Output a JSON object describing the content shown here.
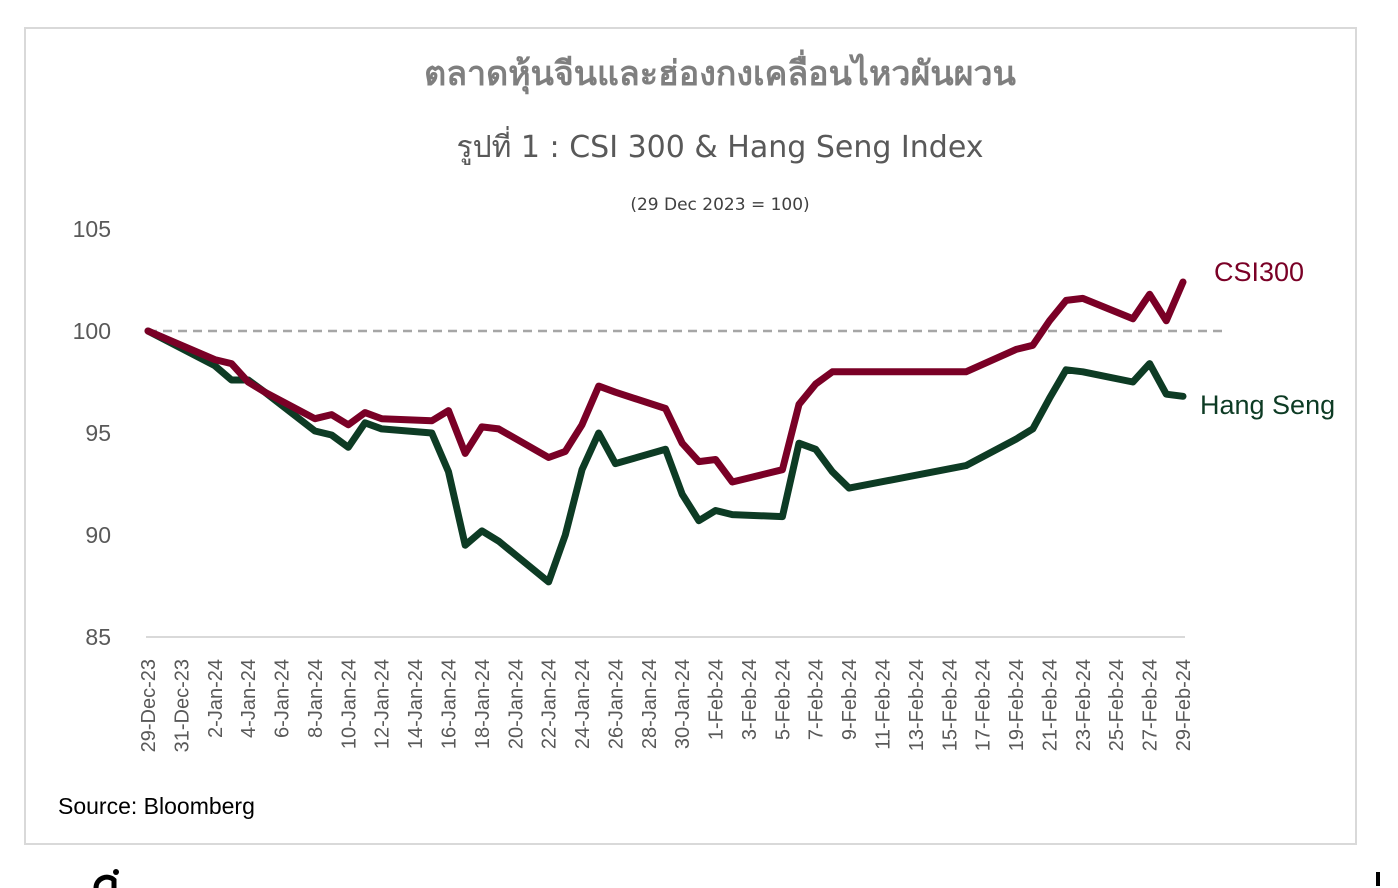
{
  "chart_data": {
    "type": "line",
    "title": "ตลาดหุ้นจีนและฮ่องกงเคลื่อนไหวผันผวน",
    "subtitle": "รูปที่ 1 : CSI 300 & Hang Seng Index",
    "note": "(29 Dec 2023 = 100)",
    "source": "Source: Bloomberg",
    "xlabel": "",
    "ylabel": "",
    "ylim": [
      85,
      105
    ],
    "yticks": [
      105,
      100,
      95,
      90,
      85
    ],
    "baseline": 100,
    "x_ticks": [
      "29-Dec-23",
      "31-Dec-23",
      "2-Jan-24",
      "4-Jan-24",
      "6-Jan-24",
      "8-Jan-24",
      "10-Jan-24",
      "12-Jan-24",
      "14-Jan-24",
      "16-Jan-24",
      "18-Jan-24",
      "20-Jan-24",
      "22-Jan-24",
      "24-Jan-24",
      "26-Jan-24",
      "28-Jan-24",
      "30-Jan-24",
      "1-Feb-24",
      "3-Feb-24",
      "5-Feb-24",
      "7-Feb-24",
      "9-Feb-24",
      "11-Feb-24",
      "13-Feb-24",
      "15-Feb-24",
      "17-Feb-24",
      "19-Feb-24",
      "21-Feb-24",
      "23-Feb-24",
      "25-Feb-24",
      "27-Feb-24",
      "29-Feb-24"
    ],
    "x_dates": [
      "2023-12-29",
      "2024-01-02",
      "2024-01-03",
      "2024-01-04",
      "2024-01-05",
      "2024-01-08",
      "2024-01-09",
      "2024-01-10",
      "2024-01-11",
      "2024-01-12",
      "2024-01-15",
      "2024-01-16",
      "2024-01-17",
      "2024-01-18",
      "2024-01-19",
      "2024-01-22",
      "2024-01-23",
      "2024-01-24",
      "2024-01-25",
      "2024-01-26",
      "2024-01-29",
      "2024-01-30",
      "2024-01-31",
      "2024-02-01",
      "2024-02-02",
      "2024-02-05",
      "2024-02-06",
      "2024-02-07",
      "2024-02-08",
      "2024-02-09",
      "2024-02-16",
      "2024-02-19",
      "2024-02-20",
      "2024-02-21",
      "2024-02-22",
      "2024-02-23",
      "2024-02-26",
      "2024-02-27",
      "2024-02-28",
      "2024-02-29"
    ],
    "series": [
      {
        "name": "CSI300",
        "color": "#7a0026",
        "values": [
          100.0,
          98.6,
          98.4,
          97.5,
          97.0,
          95.7,
          95.9,
          95.4,
          96.0,
          95.7,
          95.6,
          96.1,
          94.0,
          95.3,
          95.2,
          93.8,
          94.1,
          95.4,
          97.3,
          97.0,
          96.2,
          94.5,
          93.6,
          93.7,
          92.6,
          93.2,
          96.4,
          97.4,
          98.0,
          98.0,
          98.0,
          99.1,
          99.3,
          100.5,
          101.5,
          101.6,
          100.6,
          101.8,
          100.5,
          102.4
        ]
      },
      {
        "name": "Hang Seng",
        "color": "#0d3b24",
        "values": [
          100.0,
          98.3,
          97.6,
          97.6,
          97.0,
          95.1,
          94.9,
          94.3,
          95.5,
          95.2,
          95.0,
          93.1,
          89.5,
          90.2,
          89.7,
          87.7,
          90.0,
          93.2,
          95.0,
          93.5,
          94.2,
          92.0,
          90.7,
          91.2,
          91.0,
          90.9,
          94.5,
          94.2,
          93.1,
          92.3,
          93.4,
          94.7,
          95.2,
          96.7,
          98.1,
          98.0,
          97.5,
          98.4,
          96.9,
          96.8
        ]
      }
    ],
    "grid": false,
    "legend": "inline-right"
  }
}
